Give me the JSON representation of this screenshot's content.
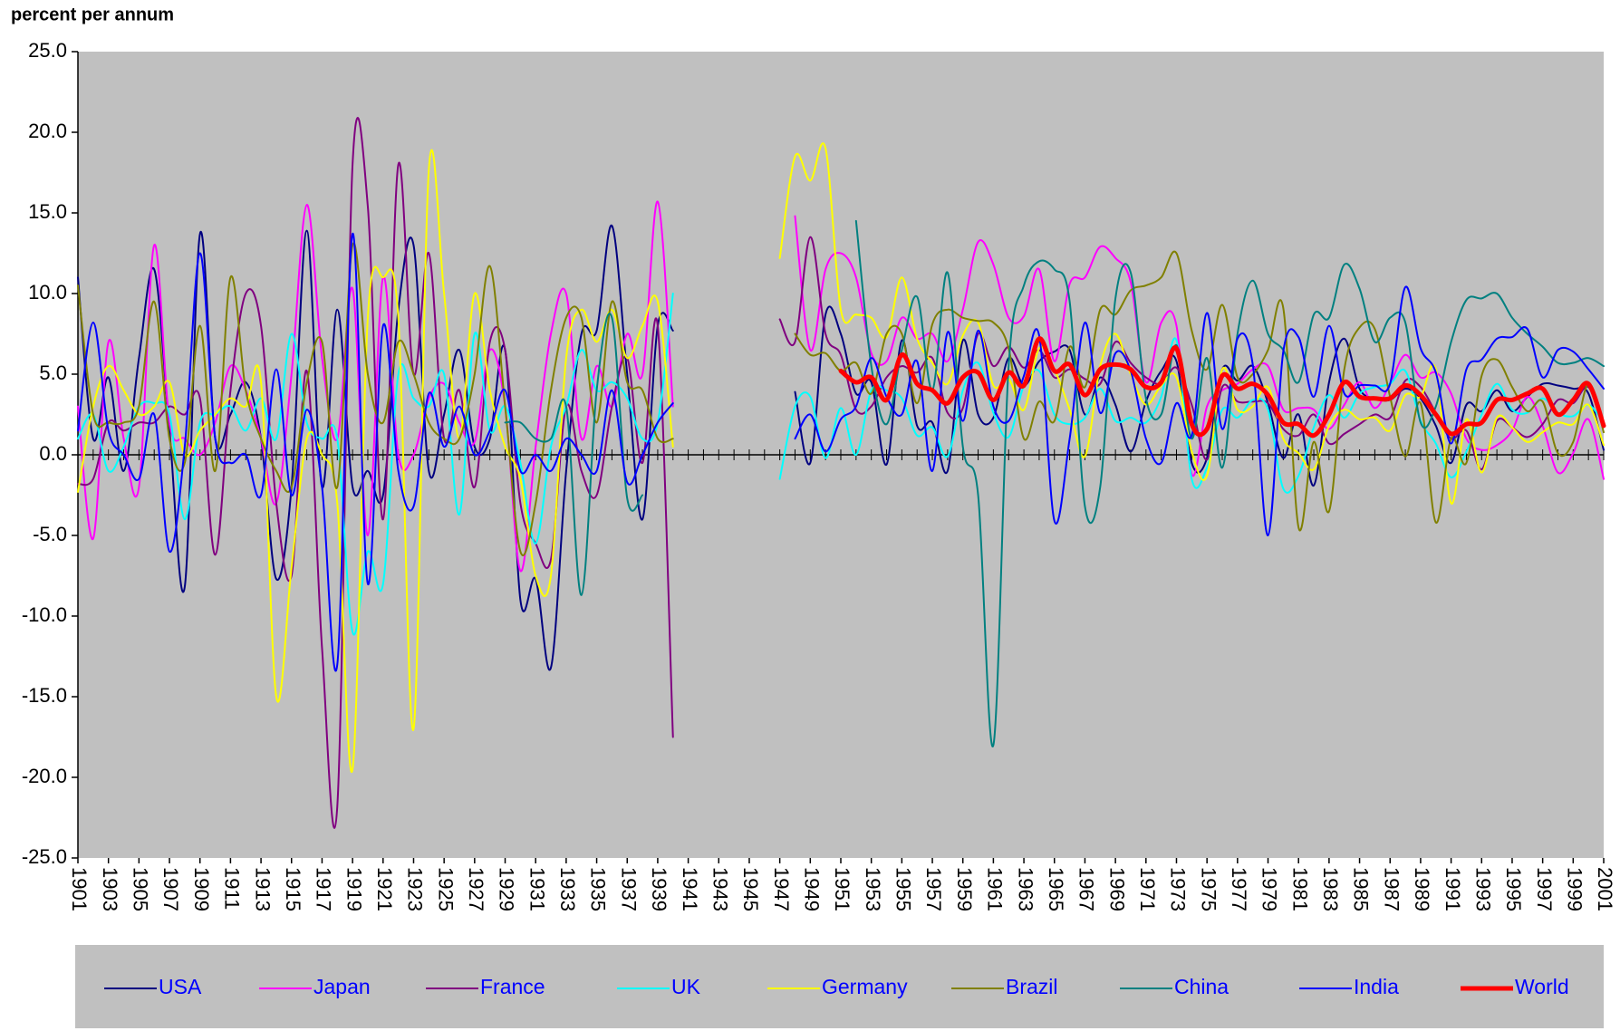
{
  "chart_data": {
    "type": "line",
    "y_label": "percent per annum",
    "x": [
      1901,
      1902,
      1903,
      1904,
      1905,
      1906,
      1907,
      1908,
      1909,
      1910,
      1911,
      1912,
      1913,
      1914,
      1915,
      1916,
      1917,
      1918,
      1919,
      1920,
      1921,
      1922,
      1923,
      1924,
      1925,
      1926,
      1927,
      1928,
      1929,
      1930,
      1931,
      1932,
      1933,
      1934,
      1935,
      1936,
      1937,
      1938,
      1939,
      1940,
      1941,
      1942,
      1943,
      1944,
      1945,
      1946,
      1947,
      1948,
      1949,
      1950,
      1951,
      1952,
      1953,
      1954,
      1955,
      1956,
      1957,
      1958,
      1959,
      1960,
      1961,
      1962,
      1963,
      1964,
      1965,
      1966,
      1967,
      1968,
      1969,
      1970,
      1971,
      1972,
      1973,
      1974,
      1975,
      1976,
      1977,
      1978,
      1979,
      1980,
      1981,
      1982,
      1983,
      1984,
      1985,
      1986,
      1987,
      1988,
      1989,
      1990,
      1991,
      1992,
      1993,
      1994,
      1995,
      1996,
      1997,
      1998,
      1999,
      2000,
      2001
    ],
    "xlim": [
      1901,
      2001
    ],
    "xticks": [
      1901,
      1903,
      1905,
      1907,
      1909,
      1911,
      1913,
      1915,
      1917,
      1919,
      1921,
      1923,
      1925,
      1927,
      1929,
      1931,
      1933,
      1935,
      1937,
      1939,
      1941,
      1943,
      1945,
      1947,
      1949,
      1951,
      1953,
      1955,
      1957,
      1959,
      1961,
      1963,
      1965,
      1967,
      1969,
      1971,
      1973,
      1975,
      1977,
      1979,
      1981,
      1983,
      1985,
      1987,
      1989,
      1991,
      1993,
      1995,
      1997,
      1999,
      2001
    ],
    "ylim": [
      -25,
      25
    ],
    "yticks": [
      {
        "value": 25,
        "label": "25.0"
      },
      {
        "value": 20,
        "label": "20.0"
      },
      {
        "value": 15,
        "label": "15.0"
      },
      {
        "value": 10,
        "label": "10.0"
      },
      {
        "value": 5,
        "label": "5.0"
      },
      {
        "value": 0,
        "label": "0.0"
      },
      {
        "value": -5,
        "label": "-5.0"
      },
      {
        "value": -10,
        "label": "-10.0"
      },
      {
        "value": -15,
        "label": "-15.0"
      },
      {
        "value": -20,
        "label": "-20.0"
      },
      {
        "value": -25,
        "label": "-25.0"
      }
    ],
    "grid": false,
    "legend": "bottom",
    "series": [
      {
        "name": "USA",
        "color": "#000080",
        "values": [
          11,
          1,
          4.8,
          -1,
          6,
          11.5,
          1.5,
          -8.2,
          13.7,
          1,
          2.5,
          4.5,
          1,
          -7.7,
          -2,
          13.9,
          -2,
          9,
          -2,
          -1,
          -2.5,
          9,
          13,
          -1,
          2.5,
          6.5,
          0.5,
          1,
          6.5,
          -9,
          -7.7,
          -13.2,
          -1,
          7.5,
          7.7,
          14.2,
          5,
          -4,
          8,
          7.7,
          null,
          null,
          null,
          null,
          null,
          null,
          null,
          3.9,
          -0.5,
          8.7,
          7.5,
          3.8,
          4.5,
          -0.6,
          7.1,
          1.8,
          2,
          -1,
          7.1,
          2.5,
          2.3,
          6,
          4.3,
          5.8,
          6.4,
          6.5,
          2.5,
          4.8,
          3.1,
          0.2,
          3.3,
          5.2,
          5.8,
          -0.5,
          -0.2,
          5.3,
          4.6,
          5.5,
          3.2,
          -0.2,
          2.5,
          -1.9,
          4.5,
          7.2,
          4.1,
          3.5,
          3.4,
          4.1,
          3.5,
          1.8,
          -0.5,
          3.1,
          2.7,
          4,
          2.7,
          3.6,
          4.4,
          4.3,
          4.1,
          3.8,
          0.3
        ]
      },
      {
        "name": "Japan",
        "color": "#ff00ff",
        "values": [
          3,
          -5.2,
          7,
          1,
          -2,
          13,
          2,
          1,
          0,
          2,
          5.5,
          4,
          1,
          -3,
          5,
          15.5,
          6,
          1,
          10.3,
          -5,
          11,
          0,
          0,
          3.5,
          4.4,
          2,
          0.8,
          6.5,
          3,
          -7.2,
          0.5,
          7.5,
          10,
          1,
          5.5,
          3,
          7.5,
          5,
          15.7,
          3,
          null,
          null,
          null,
          null,
          null,
          null,
          null,
          14.8,
          6.5,
          11.5,
          12.5,
          11,
          6.3,
          5.8,
          8.5,
          7.2,
          7.5,
          5.8,
          9,
          13.2,
          11.8,
          8.5,
          8.6,
          11.5,
          5.8,
          10.6,
          11,
          12.9,
          12.2,
          10.7,
          4.5,
          8.2,
          8,
          -1.2,
          3,
          4,
          4.4,
          5.3,
          5.5,
          2.8,
          2.9,
          2.8,
          1.6,
          3.1,
          4.5,
          2.9,
          4.4,
          6.2,
          4.8,
          5.1,
          3.8,
          1,
          0.3,
          0.6,
          1.5,
          3.6,
          1.8,
          -1.1,
          0.1,
          2.2,
          -1.5
        ]
      },
      {
        "name": "France",
        "color": "#800080",
        "values": [
          -1.8,
          -1.5,
          2,
          1.5,
          2,
          2,
          3,
          2.5,
          3.5,
          -6.2,
          4,
          10,
          8,
          -3,
          -7.5,
          5.2,
          -12,
          -21.8,
          18,
          15.4,
          -4,
          18,
          5,
          12.5,
          1,
          4,
          -2,
          7,
          6.5,
          -3,
          -5.5,
          -6.5,
          3,
          -1,
          -2.5,
          3,
          6,
          -0.5,
          8,
          -17.5,
          null,
          null,
          null,
          null,
          null,
          null,
          8.4,
          7,
          13.5,
          7.5,
          6.2,
          2.8,
          3,
          4.8,
          5.5,
          5.1,
          6,
          2.6,
          2.9,
          7.5,
          5.5,
          6.7,
          5.4,
          6.5,
          4.8,
          5.3,
          4.7,
          4.4,
          7,
          5.7,
          4.8,
          4.4,
          5.4,
          3.1,
          -0.3,
          4.2,
          3.3,
          3.3,
          3.2,
          1.6,
          1.2,
          2.5,
          0.7,
          1.3,
          1.9,
          2.5,
          2.3,
          4.6,
          4.2,
          2.6,
          1,
          1.5,
          -0.9,
          2.1,
          1.7,
          1.1,
          1.9,
          3.4,
          3.2,
          4.2,
          1.8
        ]
      },
      {
        "name": "UK",
        "color": "#00ffff",
        "values": [
          1,
          2.5,
          -1,
          0.5,
          3,
          3.2,
          2.5,
          -4,
          2,
          2.5,
          3,
          1.5,
          3.5,
          1,
          7.5,
          2,
          1,
          1,
          -11,
          -6,
          -8,
          5,
          3.5,
          3,
          5,
          -3.7,
          7.5,
          1.5,
          3,
          -0.5,
          -5.5,
          0.5,
          3,
          6.5,
          4,
          4.5,
          3.5,
          1,
          2,
          10,
          null,
          null,
          null,
          null,
          null,
          null,
          -1.5,
          3,
          3.6,
          -0.2,
          2.9,
          0,
          4,
          4,
          3.5,
          1.2,
          1.7,
          -0.1,
          4,
          5.7,
          2.6,
          1.1,
          4.3,
          5.2,
          2.5,
          1.9,
          2.3,
          4.1,
          2.1,
          2.3,
          2,
          3.6,
          7.1,
          -1.5,
          -0.8,
          2.8,
          2.3,
          3.4,
          2.8,
          -2.1,
          -1.3,
          1.7,
          3.7,
          2.3,
          3.8,
          4.2,
          4.4,
          5.2,
          2.1,
          0.7,
          -1.4,
          0.2,
          2.5,
          4.4,
          2.8,
          2.6,
          3.5,
          2.6,
          2.4,
          3.1,
          2
        ]
      },
      {
        "name": "Germany",
        "color": "#ffff00",
        "values": [
          -2.3,
          3,
          5.5,
          4,
          2.5,
          3,
          4.5,
          0,
          1.5,
          2.5,
          3.5,
          3,
          4.5,
          -15,
          -7,
          1,
          0,
          -3,
          -19.5,
          8.5,
          11,
          8.5,
          -17,
          17.7,
          10,
          1,
          10,
          4,
          0.5,
          -1.5,
          -7.5,
          -7.5,
          6,
          9,
          7,
          9,
          6,
          8,
          9.5,
          0.5,
          null,
          null,
          null,
          null,
          null,
          null,
          12.2,
          18.5,
          17,
          19,
          9,
          8.7,
          8.5,
          7.3,
          11,
          7.2,
          5.7,
          4.4,
          7.4,
          8.2,
          4.3,
          4.7,
          2.8,
          6.6,
          5.3,
          2.8,
          -0.1,
          5.5,
          7.5,
          5,
          3.1,
          4.3,
          4.8,
          0.2,
          -1.3,
          5.3,
          2.8,
          3,
          4.2,
          1,
          0.1,
          -0.9,
          1.8,
          2.8,
          2.2,
          2.3,
          1.5,
          3.7,
          3.6,
          5.3,
          -3,
          2.2,
          -1.1,
          2.3,
          1.7,
          0.8,
          1.4,
          2,
          1.9,
          3.1,
          0.6
        ]
      },
      {
        "name": "Brazil",
        "color": "#808000",
        "values": [
          10.5,
          2.5,
          2,
          2,
          3,
          9.5,
          1,
          -0.5,
          8,
          -1,
          11,
          4,
          1,
          -1,
          -2,
          4.5,
          7,
          -2,
          13,
          5,
          2,
          7,
          5,
          2,
          1,
          1,
          5,
          11.7,
          3,
          -6,
          -3,
          4,
          8.5,
          8.5,
          2,
          9.5,
          4.5,
          4,
          1,
          1,
          null,
          null,
          null,
          null,
          null,
          null,
          null,
          7.5,
          6.2,
          6.3,
          5.2,
          5.7,
          3.8,
          7.5,
          7.5,
          3.2,
          8.1,
          9,
          8.5,
          8.3,
          8.2,
          6.6,
          1,
          3.3,
          2.1,
          6.7,
          4.2,
          9,
          8.7,
          10.2,
          10.5,
          11,
          12.5,
          7.7,
          5.3,
          9.3,
          4.8,
          5,
          6.5,
          9.1,
          -4.5,
          0.8,
          -3.5,
          5.3,
          7.9,
          7.8,
          3.6,
          -0.1,
          3.2,
          -4.2,
          1,
          -0.5,
          4.9,
          5.9,
          4.2,
          2.7,
          3.3,
          0.1,
          0.8,
          4.4,
          1.4
        ]
      },
      {
        "name": "China",
        "color": "#008080",
        "values": [
          null,
          null,
          null,
          null,
          null,
          null,
          null,
          null,
          null,
          null,
          null,
          null,
          null,
          null,
          null,
          null,
          null,
          null,
          null,
          null,
          null,
          null,
          null,
          null,
          null,
          null,
          null,
          null,
          2,
          2,
          1,
          1,
          3,
          -8.7,
          4,
          8.5,
          -2.7,
          -2.5,
          null,
          null,
          null,
          null,
          null,
          null,
          null,
          null,
          null,
          null,
          null,
          null,
          null,
          14.5,
          5.5,
          1.9,
          6.5,
          9.8,
          4,
          11.3,
          0.5,
          -2.5,
          -18,
          5.5,
          10.5,
          12,
          11.5,
          9.5,
          -3.2,
          -2,
          9.7,
          11.3,
          3.5,
          2.5,
          6.8,
          1,
          6,
          -0.8,
          7.5,
          10.8,
          7.5,
          6.5,
          4.5,
          8.7,
          8.5,
          11.8,
          10.3,
          7,
          8.5,
          8.2,
          2,
          3,
          7,
          9.6,
          9.7,
          10,
          8.5,
          7.5,
          6.7,
          5.7,
          5.7,
          6,
          5.5
        ]
      },
      {
        "name": "India",
        "color": "#0000ff",
        "values": [
          1.5,
          8.2,
          1.5,
          0,
          -1.5,
          2.5,
          -6,
          0.5,
          12.5,
          1,
          -0.5,
          0,
          -2.5,
          5.3,
          -2.5,
          2.8,
          -2,
          -13,
          13.7,
          -8,
          8,
          -1,
          -3.2,
          3.8,
          0.5,
          3,
          0,
          1.5,
          4,
          -1,
          0,
          -1,
          1,
          0,
          -1,
          4,
          -1.7,
          0,
          2,
          3.2,
          null,
          null,
          null,
          null,
          null,
          null,
          null,
          1,
          2.5,
          0.2,
          2.2,
          3,
          6,
          3.6,
          2.5,
          5.8,
          -1,
          7.6,
          2.1,
          7.7,
          3,
          2.1,
          4.9,
          7.4,
          -4.1,
          1,
          8.2,
          2.6,
          6.3,
          5.2,
          1,
          -0.5,
          3.2,
          1.2,
          8.8,
          1.6,
          7.2,
          5.6,
          -5,
          6.4,
          7.3,
          3.6,
          8,
          3.8,
          4.3,
          4.3,
          4.4,
          10.4,
          6.6,
          5.1,
          0.7,
          5.3,
          5.9,
          7.2,
          7.3,
          7.8,
          4.8,
          6.5,
          6.4,
          5.3,
          4.1
        ]
      },
      {
        "name": "World",
        "color": "#ff0000",
        "values": [
          null,
          null,
          null,
          null,
          null,
          null,
          null,
          null,
          null,
          null,
          null,
          null,
          null,
          null,
          null,
          null,
          null,
          null,
          null,
          null,
          null,
          null,
          null,
          null,
          null,
          null,
          null,
          null,
          null,
          null,
          null,
          null,
          null,
          null,
          null,
          null,
          null,
          null,
          null,
          null,
          null,
          null,
          null,
          null,
          null,
          null,
          null,
          null,
          null,
          null,
          5.2,
          4.5,
          4.8,
          3.4,
          6.2,
          4.4,
          4,
          3.2,
          4.8,
          5.1,
          3.4,
          5.1,
          4.3,
          7.2,
          5.2,
          5.6,
          3.7,
          5.3,
          5.6,
          5.3,
          4.2,
          4.5,
          6.6,
          1.9,
          1.6,
          4.9,
          4.1,
          4.4,
          3.7,
          2,
          1.9,
          1.2,
          2.5,
          4.5,
          3.6,
          3.5,
          3.5,
          4.3,
          3.7,
          2.5,
          1.3,
          1.9,
          2,
          3.4,
          3.4,
          3.8,
          4.1,
          2.5,
          3.4,
          4.4,
          1.8
        ]
      }
    ]
  }
}
